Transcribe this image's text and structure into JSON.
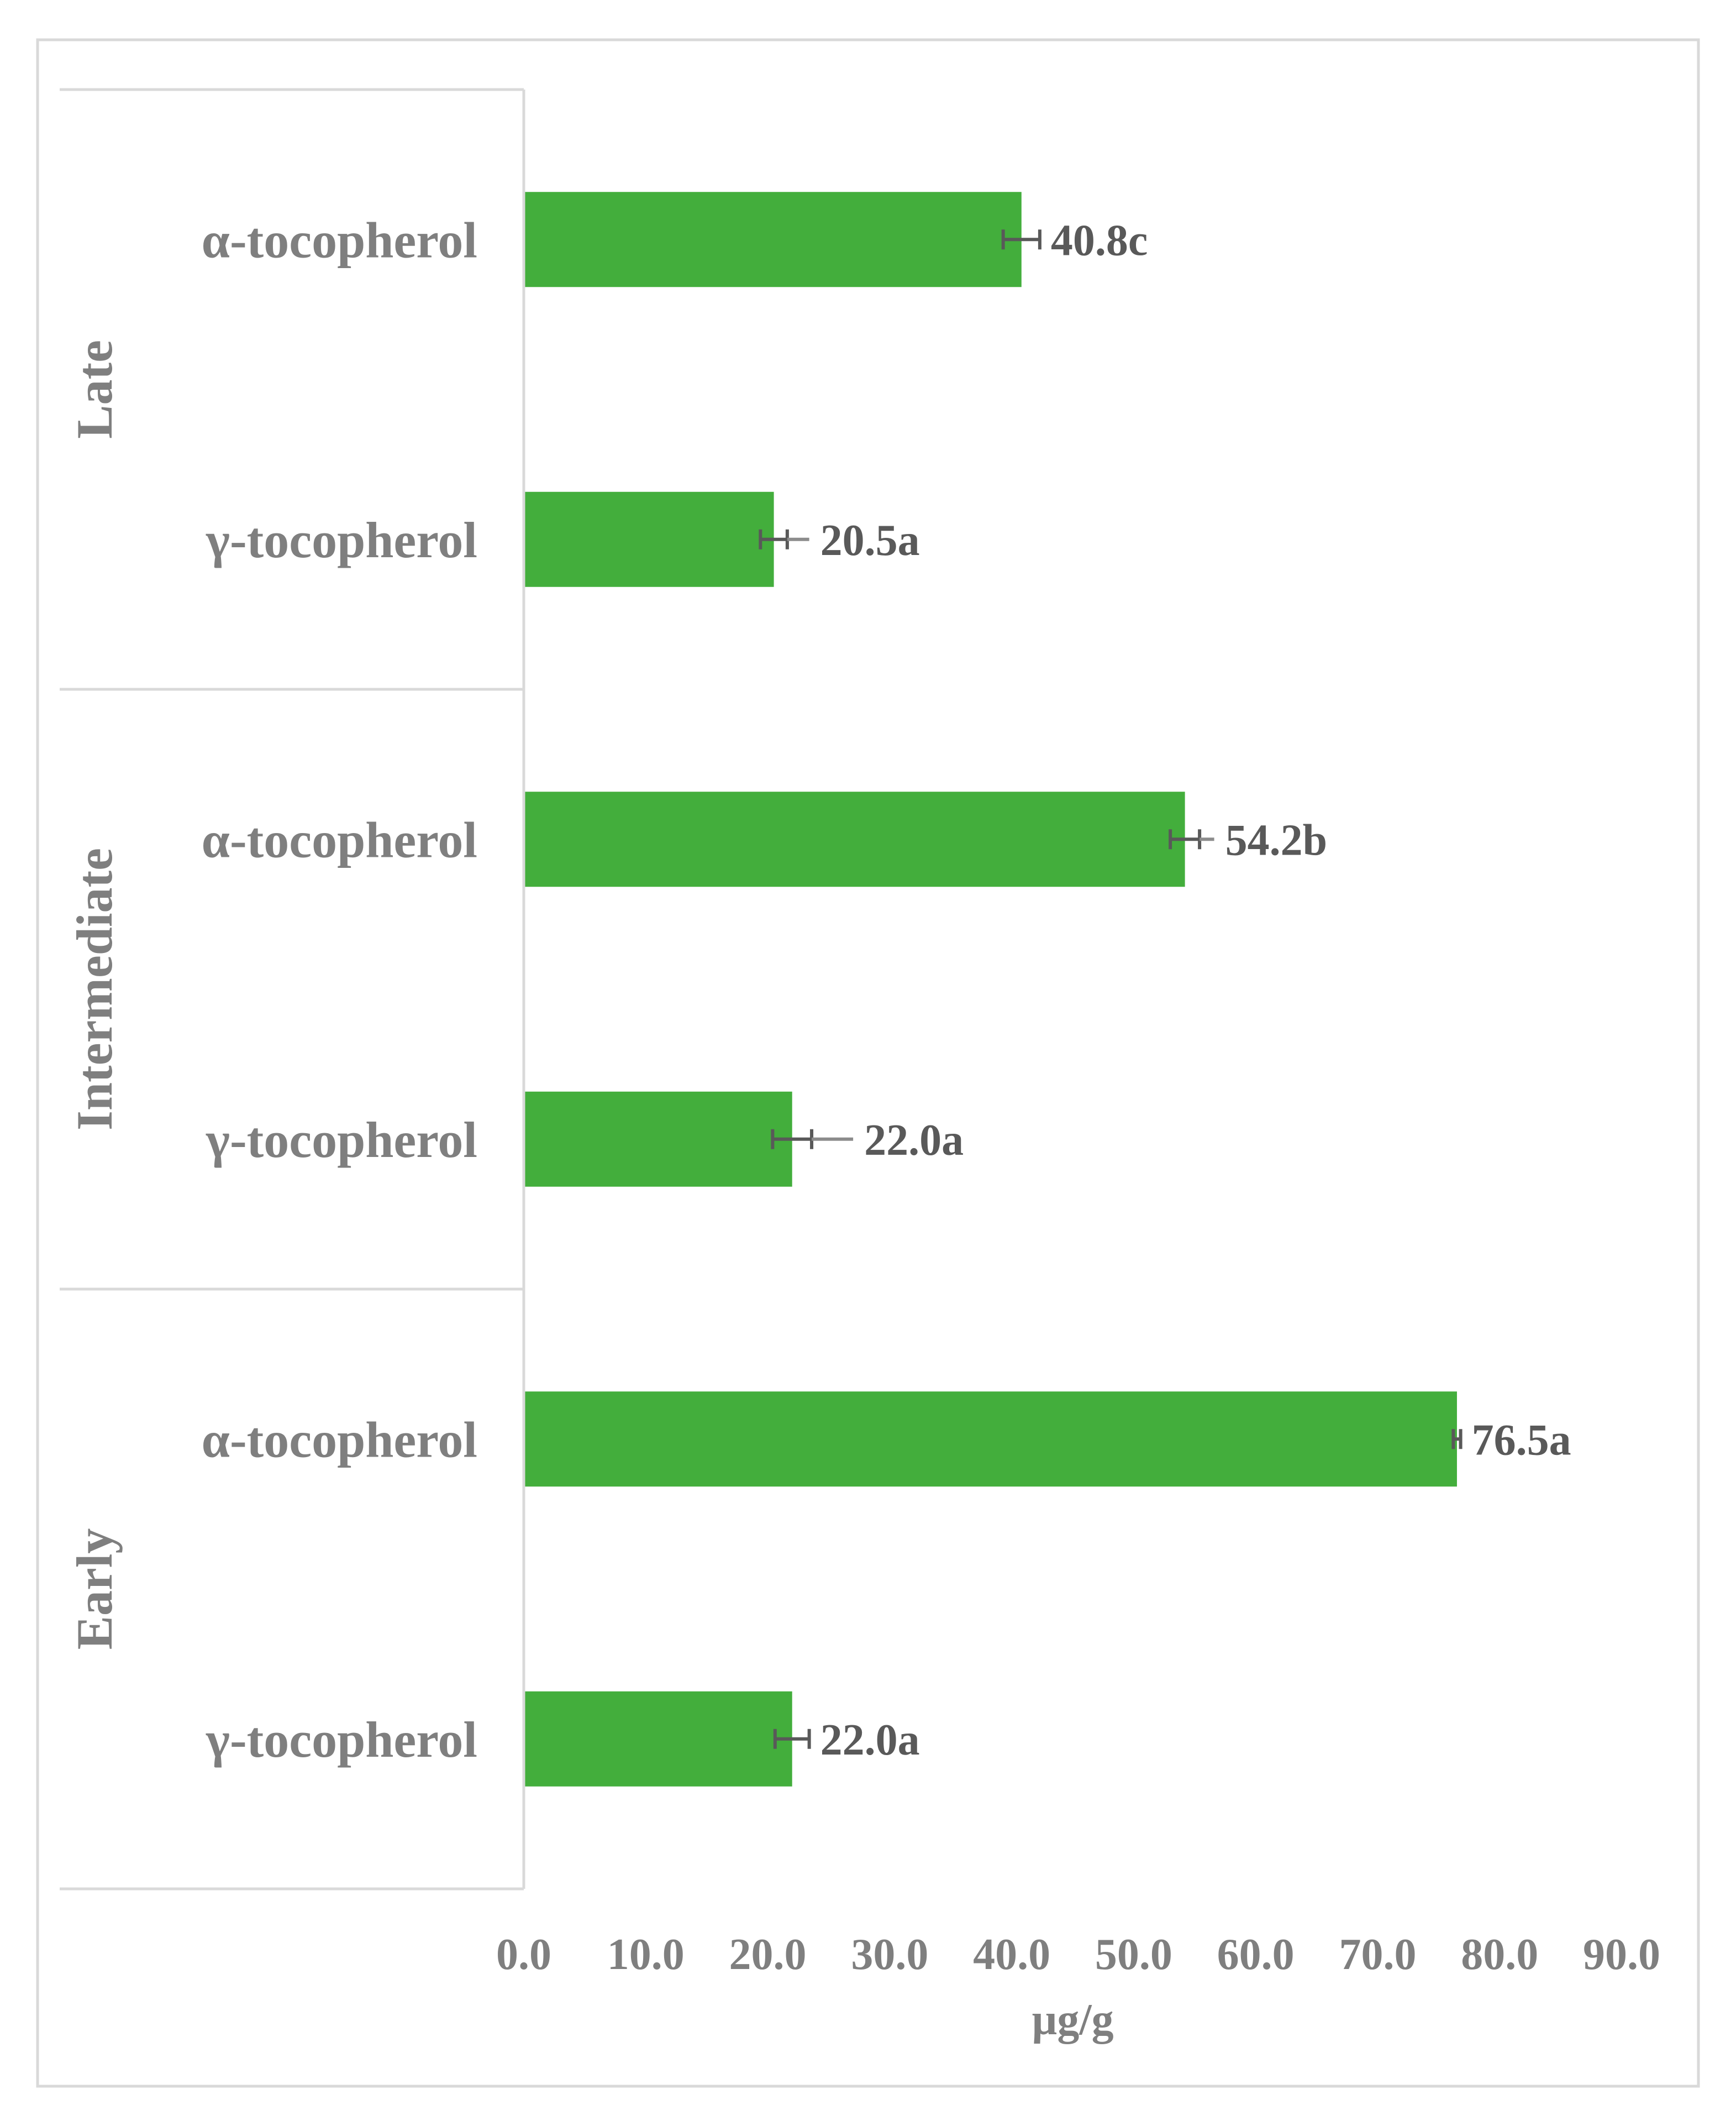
{
  "chart_data": {
    "type": "bar",
    "orientation": "horizontal",
    "xlabel": "µg/g",
    "xlim": [
      0,
      90
    ],
    "ticks": [
      "0.0",
      "10.0",
      "20.0",
      "30.0",
      "40.0",
      "50.0",
      "60.0",
      "70.0",
      "80.0",
      "90.0"
    ],
    "tick_values": [
      0,
      10,
      20,
      30,
      40,
      50,
      60,
      70,
      80,
      90
    ],
    "grid": false,
    "bar_color": "#43ae3c",
    "groups": [
      {
        "name": "Late",
        "items": [
          {
            "label": "α-tocopherol",
            "value": 40.8,
            "data_label": "40.8c",
            "err_low": 1.5,
            "err_high": 1.5,
            "err2_low": 0.0,
            "err2_high": 0.0
          },
          {
            "label": "γ-tocopherol",
            "value": 20.5,
            "data_label": "20.5a",
            "err_low": 1.1,
            "err_high": 1.1,
            "err2_low": 0.0,
            "err2_high": 2.9
          }
        ]
      },
      {
        "name": "Intermediate",
        "items": [
          {
            "label": "α-tocopherol",
            "value": 54.2,
            "data_label": "54.2b",
            "err_low": 1.2,
            "err_high": 1.2,
            "err2_low": 0.0,
            "err2_high": 2.4
          },
          {
            "label": "γ-tocopherol",
            "value": 22.0,
            "data_label": "22.0a",
            "err_low": 1.6,
            "err_high": 1.6,
            "err2_low": 0.0,
            "err2_high": 5.0
          }
        ]
      },
      {
        "name": "Early",
        "items": [
          {
            "label": "α-tocopherol",
            "value": 76.5,
            "data_label": "76.5a",
            "err_low": 0.3,
            "err_high": 0.3,
            "err2_low": 0.0,
            "err2_high": 0.0
          },
          {
            "label": "γ-tocopherol",
            "value": 22.0,
            "data_label": "22.0a",
            "err_low": 1.4,
            "err_high": 1.4,
            "err2_low": 0.0,
            "err2_high": 0.0
          }
        ]
      }
    ]
  }
}
